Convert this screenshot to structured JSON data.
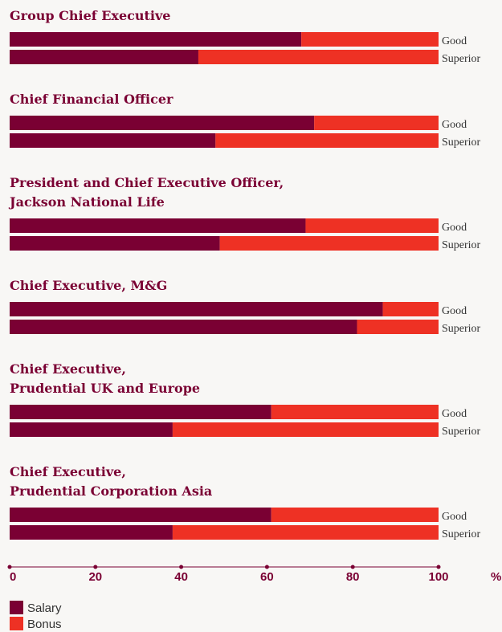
{
  "chart_data": {
    "type": "bar",
    "orientation": "horizontal",
    "stacked": true,
    "group_titles": [
      [
        "Group Chief Executive"
      ],
      [
        "Chief Financial Officer"
      ],
      [
        "President and Chief Executive Officer,",
        "Jackson National Life"
      ],
      [
        "Chief Executive, M&G"
      ],
      [
        "Chief Executive,",
        "Prudential UK and Europe"
      ],
      [
        "Chief Executive,",
        "Prudential Corporation Asia"
      ]
    ],
    "categories": [
      "Good",
      "Superior",
      "Good",
      "Superior",
      "Good",
      "Superior",
      "Good",
      "Superior",
      "Good",
      "Superior",
      "Good",
      "Superior"
    ],
    "series": [
      {
        "name": "Salary",
        "color": "#7a0033",
        "values": [
          68,
          44,
          71,
          48,
          69,
          49,
          87,
          81,
          61,
          38,
          61,
          38
        ]
      },
      {
        "name": "Bonus",
        "color": "#ee3124",
        "values": [
          32,
          56,
          29,
          52,
          31,
          51,
          13,
          19,
          39,
          62,
          39,
          62
        ]
      }
    ],
    "xlim": [
      0,
      100
    ],
    "xticks": [
      0,
      20,
      40,
      60,
      80,
      100
    ],
    "x_label": "%"
  }
}
